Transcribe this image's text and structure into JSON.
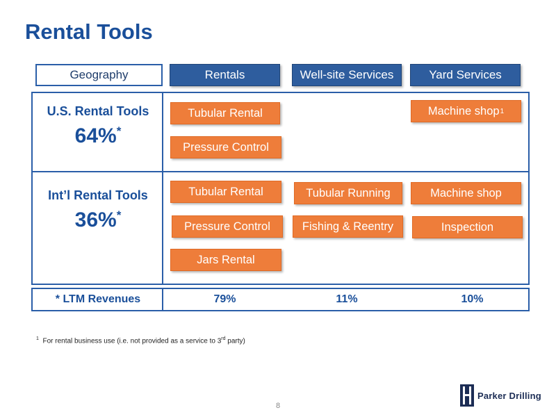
{
  "title": "Rental Tools",
  "headers": {
    "geography": "Geography",
    "rentals": "Rentals",
    "wellsite": "Well-site Services",
    "yard": "Yard Services"
  },
  "us": {
    "name": "U.S. Rental Tools",
    "pct": "64%",
    "pct_mark": "*",
    "rentals": [
      "Tubular Rental",
      "Pressure Control"
    ],
    "yard": [
      "Machine shop"
    ],
    "yard_mark": "1"
  },
  "intl": {
    "name": "Int’l Rental Tools",
    "pct": "36%",
    "pct_mark": "*",
    "rentals": [
      "Tubular Rental",
      "Pressure Control",
      "Jars Rental"
    ],
    "wellsite": [
      "Tubular Running",
      "Fishing & Reentry"
    ],
    "yard": [
      "Machine shop",
      "Inspection"
    ]
  },
  "ltm": {
    "label": "* LTM Revenues",
    "rentals": "79%",
    "wellsite": "11%",
    "yard": "10%"
  },
  "footnote": {
    "mark": "1",
    "text_before": "For rental business use (i.e. not provided as a service to 3",
    "sup": "rd",
    "text_after": " party)"
  },
  "page_number": "8",
  "logo": {
    "name": "Parker Drilling",
    "icon": "parker-drilling-logo-icon"
  },
  "colors": {
    "title": "#1a4f9a",
    "header_fill": "#2e5d9e",
    "service_box": "#ee7d3a",
    "frame": "#2a5ea8"
  }
}
